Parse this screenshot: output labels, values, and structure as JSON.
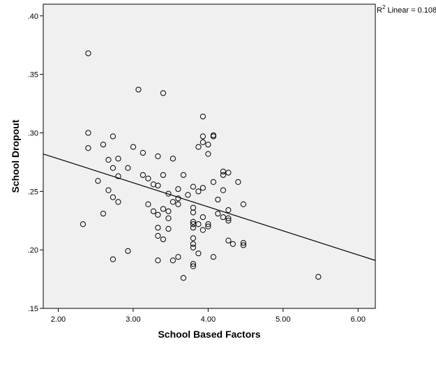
{
  "chart_data": {
    "type": "scatter",
    "xlabel": "School Based Factors",
    "ylabel": "School Dropout",
    "xlim": [
      1.8,
      6.23
    ],
    "ylim": [
      0.15,
      0.41
    ],
    "xticks": [
      2.0,
      3.0,
      4.0,
      5.0,
      6.0
    ],
    "xtick_labels": [
      "2.00",
      "3.00",
      "4.00",
      "5.00",
      "6.00"
    ],
    "yticks": [
      0.15,
      0.2,
      0.25,
      0.3,
      0.35,
      0.4
    ],
    "ytick_labels": [
      ".15",
      ".20",
      ".25",
      ".30",
      ".35",
      ".40"
    ],
    "fit_line": {
      "label": "Linear",
      "r2_prefix": "R",
      "r2_sup": "2",
      "r2_text": " Linear = 0.108",
      "x": [
        1.8,
        6.23
      ],
      "y": [
        0.282,
        0.191
      ]
    },
    "plot_background": "#f0f0f0",
    "points": [
      [
        2.4,
        0.368
      ],
      [
        3.07,
        0.337
      ],
      [
        3.4,
        0.334
      ],
      [
        2.4,
        0.3
      ],
      [
        2.73,
        0.297
      ],
      [
        2.6,
        0.29
      ],
      [
        2.4,
        0.287
      ],
      [
        3.0,
        0.288
      ],
      [
        3.13,
        0.283
      ],
      [
        3.33,
        0.28
      ],
      [
        2.8,
        0.278
      ],
      [
        2.67,
        0.277
      ],
      [
        3.53,
        0.278
      ],
      [
        2.73,
        0.27
      ],
      [
        2.93,
        0.27
      ],
      [
        3.13,
        0.264
      ],
      [
        3.4,
        0.264
      ],
      [
        2.8,
        0.263
      ],
      [
        3.2,
        0.261
      ],
      [
        2.53,
        0.259
      ],
      [
        3.27,
        0.256
      ],
      [
        3.33,
        0.255
      ],
      [
        2.67,
        0.251
      ],
      [
        3.6,
        0.252
      ],
      [
        3.47,
        0.248
      ],
      [
        3.73,
        0.247
      ],
      [
        2.73,
        0.245
      ],
      [
        3.6,
        0.244
      ],
      [
        2.8,
        0.241
      ],
      [
        3.53,
        0.241
      ],
      [
        3.6,
        0.239
      ],
      [
        3.2,
        0.239
      ],
      [
        3.4,
        0.235
      ],
      [
        3.27,
        0.233
      ],
      [
        3.47,
        0.233
      ],
      [
        2.6,
        0.231
      ],
      [
        3.33,
        0.23
      ],
      [
        3.47,
        0.227
      ],
      [
        2.33,
        0.222
      ],
      [
        3.33,
        0.219
      ],
      [
        3.47,
        0.218
      ],
      [
        3.33,
        0.212
      ],
      [
        3.4,
        0.209
      ],
      [
        2.93,
        0.199
      ],
      [
        3.6,
        0.194
      ],
      [
        2.73,
        0.192
      ],
      [
        3.33,
        0.191
      ],
      [
        3.53,
        0.191
      ],
      [
        3.67,
        0.176
      ],
      [
        3.93,
        0.314
      ],
      [
        4.07,
        0.298
      ],
      [
        4.07,
        0.297
      ],
      [
        3.93,
        0.297
      ],
      [
        3.93,
        0.292
      ],
      [
        4.0,
        0.29
      ],
      [
        3.87,
        0.288
      ],
      [
        4.0,
        0.282
      ],
      [
        4.2,
        0.267
      ],
      [
        4.2,
        0.264
      ],
      [
        4.27,
        0.266
      ],
      [
        3.67,
        0.264
      ],
      [
        4.07,
        0.258
      ],
      [
        4.4,
        0.258
      ],
      [
        3.8,
        0.254
      ],
      [
        3.93,
        0.253
      ],
      [
        4.2,
        0.251
      ],
      [
        3.87,
        0.25
      ],
      [
        4.13,
        0.243
      ],
      [
        4.47,
        0.239
      ],
      [
        3.8,
        0.236
      ],
      [
        4.27,
        0.234
      ],
      [
        3.8,
        0.232
      ],
      [
        4.13,
        0.231
      ],
      [
        3.93,
        0.228
      ],
      [
        4.2,
        0.228
      ],
      [
        4.27,
        0.227
      ],
      [
        4.27,
        0.225
      ],
      [
        3.8,
        0.224
      ],
      [
        3.8,
        0.222
      ],
      [
        3.87,
        0.222
      ],
      [
        4.0,
        0.222
      ],
      [
        4.0,
        0.22
      ],
      [
        3.8,
        0.219
      ],
      [
        3.93,
        0.217
      ],
      [
        3.8,
        0.21
      ],
      [
        4.27,
        0.208
      ],
      [
        4.33,
        0.205
      ],
      [
        4.47,
        0.206
      ],
      [
        4.47,
        0.204
      ],
      [
        3.8,
        0.205
      ],
      [
        3.8,
        0.202
      ],
      [
        3.87,
        0.197
      ],
      [
        4.07,
        0.194
      ],
      [
        3.8,
        0.188
      ],
      [
        3.8,
        0.186
      ],
      [
        5.47,
        0.177
      ]
    ]
  }
}
